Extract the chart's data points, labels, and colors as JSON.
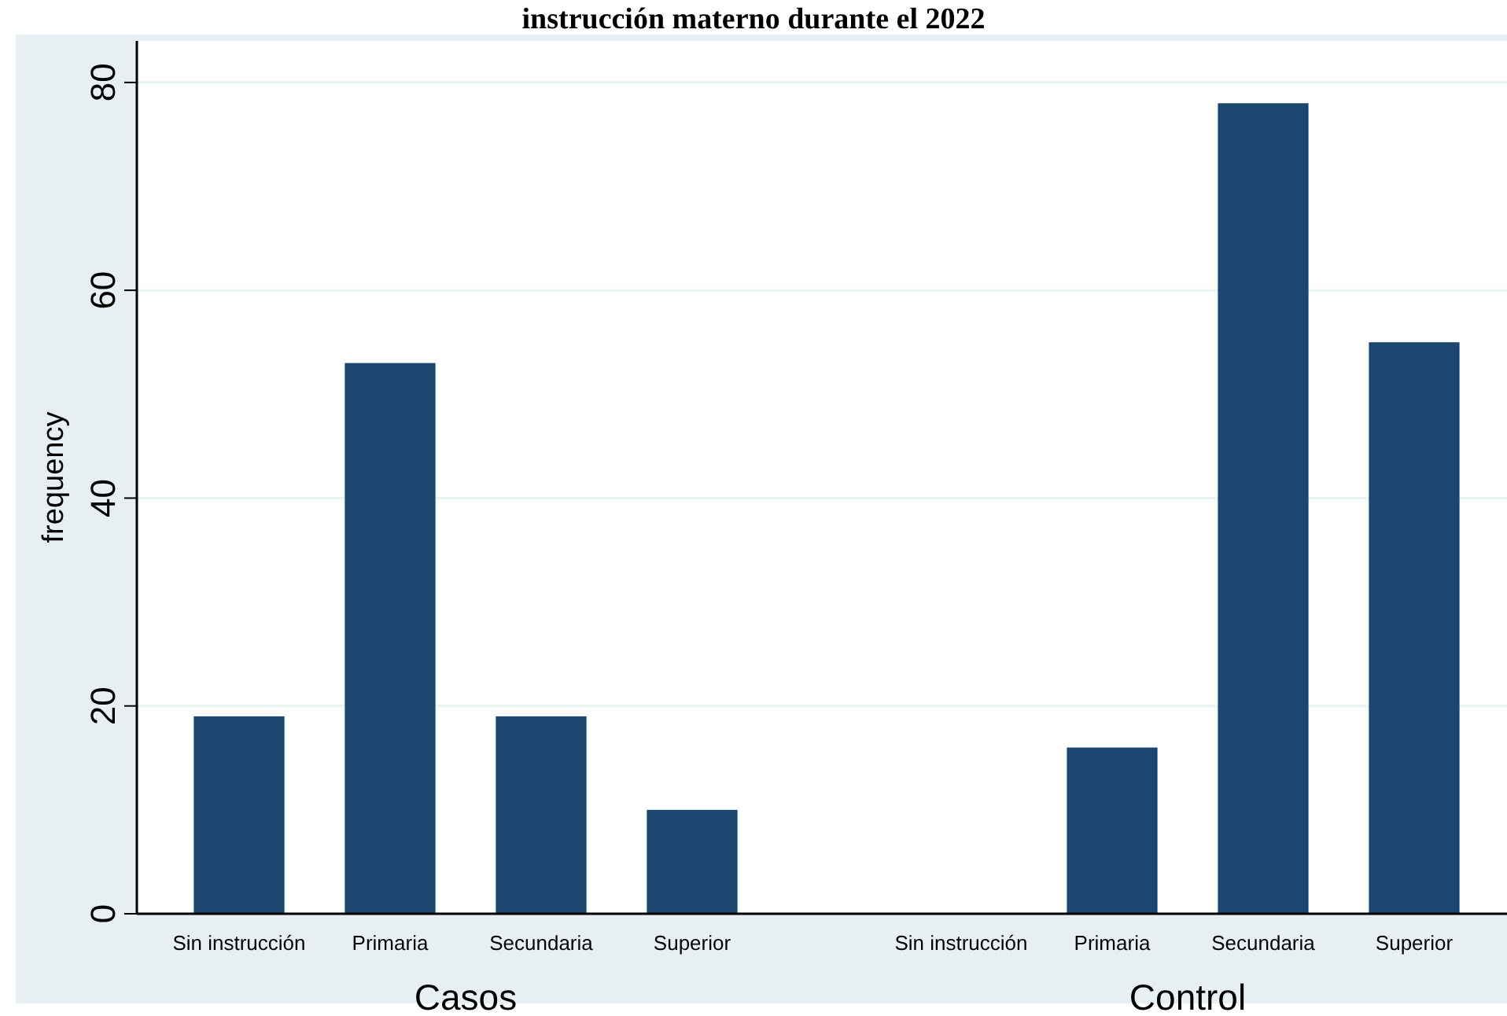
{
  "chart_data": [
    {
      "type": "bar",
      "title": "instrucción materno durante el 2022",
      "categories": [
        "Sin instrucción",
        "Primaria",
        "Secundaria",
        "Superior"
      ],
      "values": [
        19,
        53,
        19,
        10
      ],
      "color": "#1c4670",
      "xlabel": "Casos",
      "ylabel": "frequency",
      "ylim": [
        0,
        84
      ],
      "yticks": [
        0,
        20,
        40,
        60,
        80
      ],
      "grid": "y"
    },
    {
      "type": "bar",
      "categories": [
        "Sin instrucción",
        "Primaria",
        "Secundaria",
        "Superior"
      ],
      "values": [
        0,
        16,
        78,
        55
      ],
      "color": "#1c4670",
      "xlabel": "Control",
      "ylim": [
        0,
        84
      ],
      "yticks": [
        0,
        20,
        40,
        60,
        80
      ],
      "grid": "y",
      "tick_labels": "x"
    }
  ]
}
